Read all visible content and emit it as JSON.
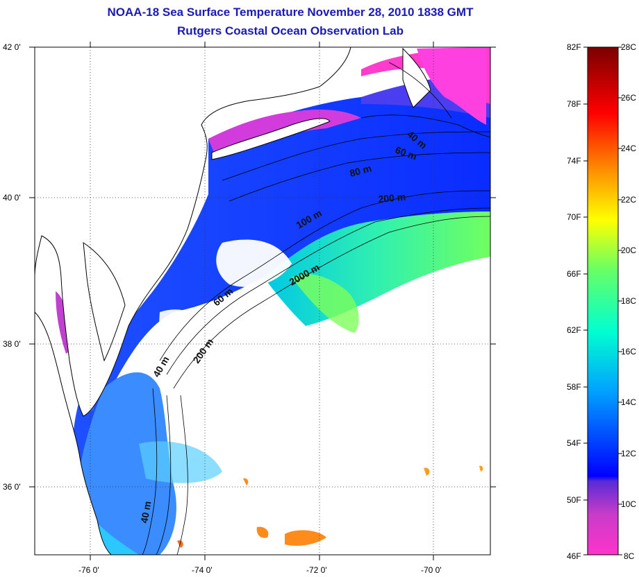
{
  "title": {
    "line1": "NOAA-18 Sea Surface Temperature November 28, 2010 1838 GMT",
    "line2": "Rutgers Coastal Ocean Observation Lab"
  },
  "axes": {
    "lat_labels": [
      "42 0'",
      "40 0'",
      "38 0'",
      "36 0'"
    ],
    "lon_labels": [
      "-76 0'",
      "-74 0'",
      "-72 0'",
      "-70 0'"
    ]
  },
  "contour_labels": [
    "40 m",
    "60 m",
    "80 m",
    "200 m",
    "100 m",
    "2000 m",
    "60 m",
    "40 m",
    "200 m",
    "40 m"
  ],
  "colorbar": {
    "fahrenheit": [
      "82F",
      "78F",
      "74F",
      "70F",
      "66F",
      "62F",
      "58F",
      "54F",
      "50F",
      "46F"
    ],
    "celsius": [
      "28C",
      "26C",
      "24C",
      "22C",
      "20C",
      "18C",
      "16C",
      "14C",
      "12C",
      "10C",
      "8C"
    ],
    "colors": [
      "#7a0000",
      "#ff0000",
      "#ff8c00",
      "#ffff00",
      "#66ff66",
      "#00ffd0",
      "#00a0ff",
      "#0000ff",
      "#5a2bd6",
      "#c83cc8",
      "#ff33cc"
    ]
  }
}
